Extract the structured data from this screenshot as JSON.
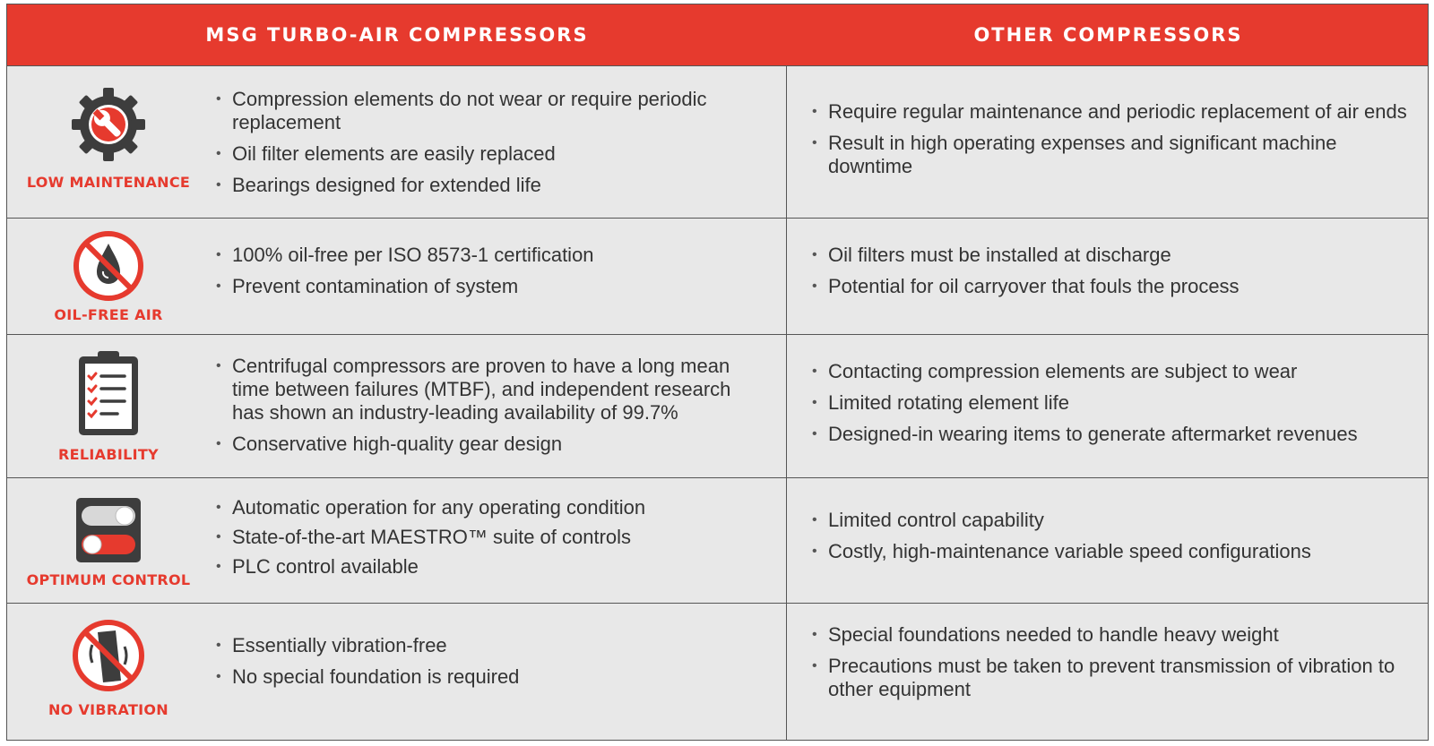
{
  "header": {
    "left_title": "MSG TURBO-AIR COMPRESSORS",
    "right_title": "OTHER COMPRESSORS"
  },
  "colors": {
    "accent": "#e63a2e",
    "icon_dark": "#3d3d3d",
    "background": "#e8e8e8"
  },
  "rows": [
    {
      "label": "LOW MAINTENANCE",
      "icon": "gear-wrench-icon",
      "msg": [
        "Compression elements do not wear or require periodic replacement",
        "Oil filter elements are easily replaced",
        "Bearings designed for extended life"
      ],
      "other": [
        "Require regular maintenance and periodic replacement of air ends",
        "Result in high operating expenses and significant machine downtime"
      ]
    },
    {
      "label": "OIL-FREE AIR",
      "icon": "no-oil-icon",
      "msg": [
        "100% oil-free per ISO 8573-1 certification",
        "Prevent contamination of system"
      ],
      "other": [
        "Oil filters must be installed at discharge",
        "Potential for oil carryover that fouls the process"
      ]
    },
    {
      "label": "RELIABILITY",
      "icon": "clipboard-checklist-icon",
      "msg": [
        "Centrifugal compressors are proven to have a long mean time between failures (MTBF), and independent research has shown an industry-leading availability of 99.7%",
        "Conservative high-quality gear design"
      ],
      "other": [
        "Contacting compression elements are subject to wear",
        "Limited rotating element life",
        "Designed-in wearing items to generate aftermarket revenues"
      ]
    },
    {
      "label": "OPTIMUM CONTROL",
      "icon": "toggle-switches-icon",
      "msg": [
        "Automatic operation for any operating condition",
        "State-of-the-art MAESTRO™ suite of controls",
        "PLC control available"
      ],
      "other": [
        "Limited control capability",
        "Costly, high-maintenance variable speed configurations"
      ]
    },
    {
      "label": "NO VIBRATION",
      "icon": "no-vibration-icon",
      "msg": [
        "Essentially vibration-free",
        "No special foundation is required"
      ],
      "other": [
        "Special foundations needed to handle heavy weight",
        "Precautions must be taken to prevent transmission of vibration to other equipment"
      ]
    }
  ]
}
